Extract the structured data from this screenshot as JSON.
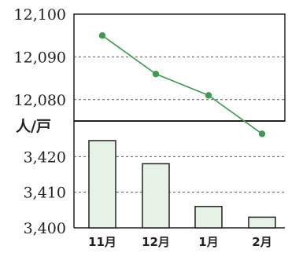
{
  "chart_data": [
    {
      "type": "line",
      "categories": [
        "11月",
        "12月",
        "1月",
        "2月"
      ],
      "values": [
        12095,
        12086,
        12081,
        12072
      ],
      "ylim": [
        12075,
        12100
      ],
      "yticks": [
        "12,100",
        "12,090",
        "12,080"
      ],
      "yticks_values": [
        12100,
        12090,
        12080
      ],
      "ylabel": "",
      "grid": "dashed-horizontal",
      "color": "#3f9a4f"
    },
    {
      "type": "bar",
      "categories": [
        "11月",
        "12月",
        "1月",
        "2月"
      ],
      "values": [
        3424.5,
        3418,
        3406,
        3403
      ],
      "ylim": [
        3400,
        3430
      ],
      "yticks": [
        "3,420",
        "3,410",
        "3,400"
      ],
      "yticks_values": [
        3420,
        3410,
        3400
      ],
      "ylabel": "人/戸",
      "grid": "dashed-horizontal",
      "bar_fill": "#e6f2e6",
      "bar_stroke": "#222222"
    }
  ]
}
